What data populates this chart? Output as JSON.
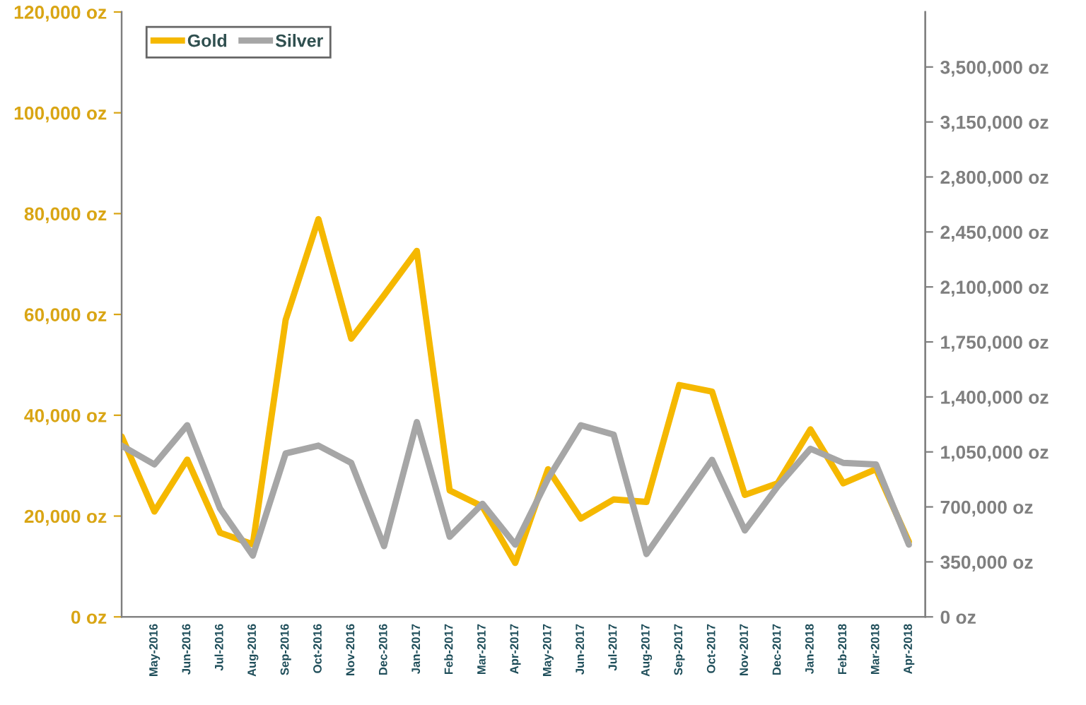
{
  "chart_data": {
    "type": "line",
    "categories": [
      null,
      "May-2016",
      "Jun-2016",
      "Jul-2016",
      "Aug-2016",
      "Sep-2016",
      "Oct-2016",
      "Nov-2016",
      "Dec-2016",
      "Jan-2017",
      "Feb-2017",
      "Mar-2017",
      "Apr-2017",
      "May-2017",
      "Jun-2017",
      "Jul-2017",
      "Aug-2017",
      "Sep-2017",
      "Oct-2017",
      "Nov-2017",
      "Dec-2017",
      "Jan-2018",
      "Feb-2018",
      "Mar-2018",
      "Apr-2018"
    ],
    "series": [
      {
        "name": "Gold",
        "color": "#f5b800",
        "values": [
          35800,
          20900,
          31200,
          16700,
          14400,
          58900,
          78900,
          55200,
          63800,
          72600,
          25100,
          21900,
          10700,
          29300,
          19500,
          23300,
          22800,
          46000,
          44700,
          24200,
          26500,
          37200,
          26500,
          29300,
          14900
        ]
      },
      {
        "name": "Silver",
        "color": "#a6a6a6",
        "axis": "y2",
        "values": [
          1090000,
          970000,
          1220000,
          690000,
          390000,
          1040000,
          1090000,
          980000,
          450000,
          1240000,
          510000,
          720000,
          460000,
          880000,
          1220000,
          1160000,
          400000,
          700000,
          1000000,
          550000,
          830000,
          1070000,
          980000,
          970000,
          460000
        ]
      }
    ],
    "ylim": [
      0,
      120000
    ],
    "yticks": [
      {
        "value": 0,
        "label": "0 oz"
      },
      {
        "value": 20000,
        "label": "20,000 oz"
      },
      {
        "value": 40000,
        "label": "40,000 oz"
      },
      {
        "value": 60000,
        "label": "60,000 oz"
      },
      {
        "value": 80000,
        "label": "80,000 oz"
      },
      {
        "value": 100000,
        "label": "100,000 oz"
      },
      {
        "value": 120000,
        "label": "120,000 oz"
      }
    ],
    "y2lim": [
      0,
      3850000
    ],
    "y2ticks": [
      {
        "value": 0,
        "label": "0 oz"
      },
      {
        "value": 350000,
        "label": "350,000 oz"
      },
      {
        "value": 700000,
        "label": "700,000 oz"
      },
      {
        "value": 1050000,
        "label": "1,050,000 oz"
      },
      {
        "value": 1400000,
        "label": "1,400,000 oz"
      },
      {
        "value": 1750000,
        "label": "1,750,000 oz"
      },
      {
        "value": 2100000,
        "label": "2,100,000 oz"
      },
      {
        "value": 2450000,
        "label": "2,450,000 oz"
      },
      {
        "value": 2800000,
        "label": "2,800,000 oz"
      },
      {
        "value": 3150000,
        "label": "3,150,000 oz"
      },
      {
        "value": 3500000,
        "label": "3,500,000 oz"
      }
    ],
    "grid": false,
    "legend": "top left",
    "marker": "none",
    "line_style": "solid"
  }
}
